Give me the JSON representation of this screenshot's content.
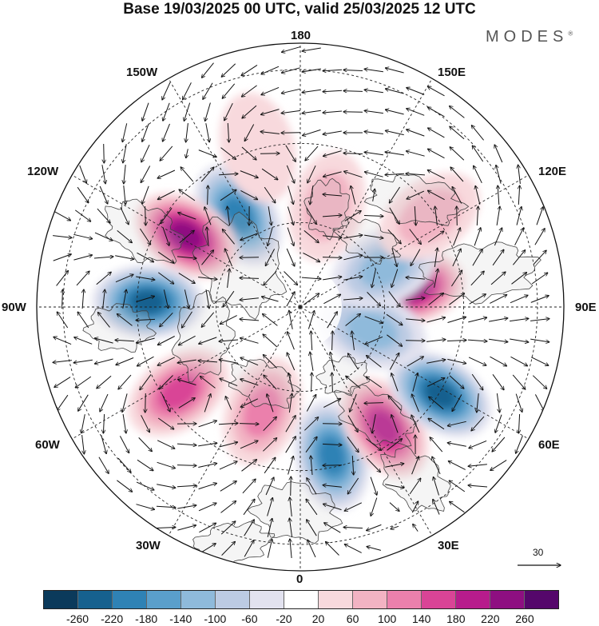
{
  "title": "Base 19/03/2025 00 UTC, valid 25/03/2025 12 UTC",
  "brand": {
    "name": "MODES",
    "mark": "®"
  },
  "longitude_labels": {
    "n180": "180",
    "w150": "150W",
    "e150": "150E",
    "w120": "120W",
    "e120": "120E",
    "w90": "90W",
    "e90": "90E",
    "w60": "60W",
    "e60": "60E",
    "w30": "30W",
    "e30": "30E",
    "s0": "0"
  },
  "vector_scale_label": "30",
  "colorbar": {
    "ticks": [
      "-260",
      "-220",
      "-180",
      "-140",
      "-100",
      "-60",
      "-20",
      "20",
      "60",
      "100",
      "140",
      "180",
      "220",
      "260"
    ],
    "colors": [
      "#0b3a5b",
      "#16618f",
      "#2f82b5",
      "#5a9fcb",
      "#8fbadb",
      "#bccbe3",
      "#e2e2ef",
      "#ffffff",
      "#f8d9dd",
      "#f2b3c3",
      "#eb80ac",
      "#d94496",
      "#b71c8c",
      "#8e0f81",
      "#55076b"
    ]
  },
  "map": {
    "projection": "north polar stereographic",
    "field": "anomaly shading with wind vectors",
    "anomaly_centers": [
      {
        "lon_deg": 214,
        "lat_ring": 0.62,
        "value": -220
      },
      {
        "lon_deg": 238,
        "lat_ring": 0.75,
        "value": 240
      },
      {
        "lon_deg": 268,
        "lat_ring": 0.85,
        "value": -240
      },
      {
        "lon_deg": 305,
        "lat_ring": 0.83,
        "value": 160
      },
      {
        "lon_deg": 340,
        "lat_ring": 0.62,
        "value": 120
      },
      {
        "lon_deg": 12,
        "lat_ring": 0.85,
        "value": -200
      },
      {
        "lon_deg": 35,
        "lat_ring": 0.82,
        "value": 220
      },
      {
        "lon_deg": 58,
        "lat_ring": 0.92,
        "value": -240
      },
      {
        "lon_deg": 100,
        "lat_ring": 0.62,
        "value": 250
      },
      {
        "lon_deg": 72,
        "lat_ring": 0.42,
        "value": -120
      },
      {
        "lon_deg": 115,
        "lat_ring": 0.52,
        "value": -140
      },
      {
        "lon_deg": 165,
        "lat_ring": 0.58,
        "value": 110
      },
      {
        "lon_deg": 125,
        "lat_ring": 0.88,
        "value": 80
      },
      {
        "lon_deg": 195,
        "lat_ring": 0.92,
        "value": 60
      }
    ]
  }
}
